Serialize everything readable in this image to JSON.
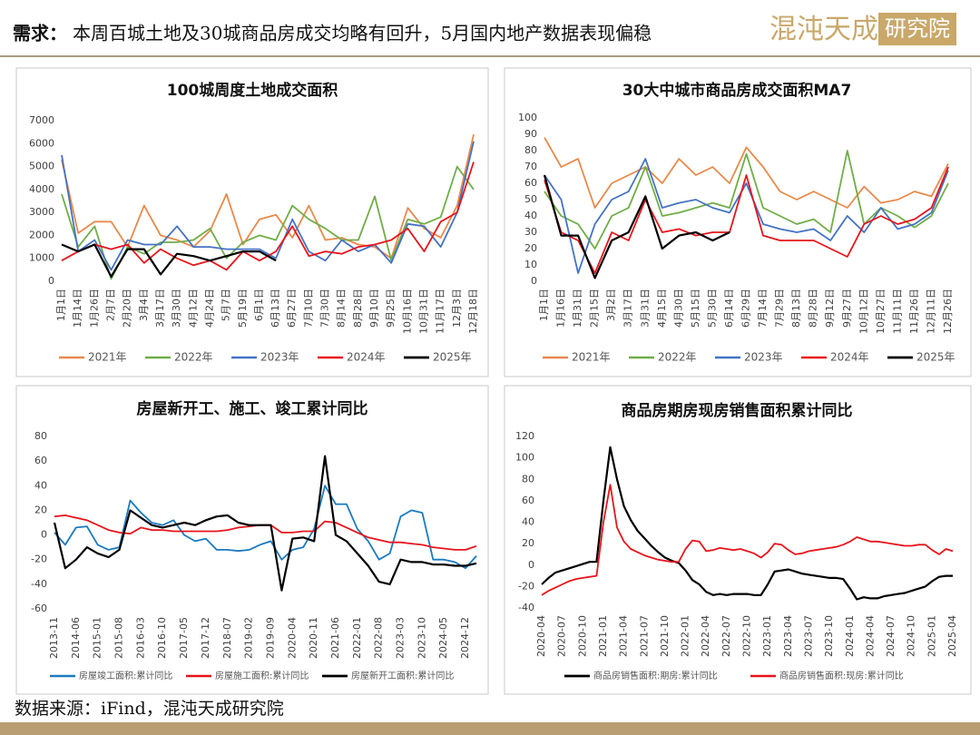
{
  "header": {
    "label": "需求：",
    "title": "本周百城土地及30城商品房成交均略有回升，5月国内地产数据表现偏稳",
    "logo_main": "混沌天成",
    "logo_box": "研究院"
  },
  "source": "数据来源：iFind，混沌天成研究院",
  "chart_data": [
    {
      "type": "line",
      "title": "100城周度土地成交面积",
      "categories": [
        "1月1日",
        "1月14日",
        "1月26日",
        "2月7日",
        "2月20日",
        "3月4日",
        "3月17日",
        "3月30日",
        "4月12日",
        "4月24日",
        "5月7日",
        "5月19日",
        "6月1日",
        "6月13日",
        "6月27日",
        "7月10日",
        "7月30日",
        "8月14日",
        "8月28日",
        "9月10日",
        "9月25日",
        "10月16日",
        "10月31日",
        "11月17日",
        "12月3日",
        "12月18日"
      ],
      "ylim": [
        0,
        7000
      ],
      "yticks": [
        0,
        1000,
        2000,
        3000,
        4000,
        5000,
        6000,
        7000
      ],
      "series": [
        {
          "name": "2021年",
          "color": "#e8894a",
          "values": [
            5300,
            2100,
            2600,
            2600,
            1500,
            3300,
            2000,
            1800,
            1500,
            2200,
            3800,
            1600,
            2700,
            2900,
            1900,
            3300,
            1800,
            1900,
            1600,
            1500,
            1000,
            3200,
            2300,
            1900,
            3300,
            6400
          ]
        },
        {
          "name": "2022年",
          "color": "#70ad47",
          "values": [
            3800,
            1500,
            2400,
            100,
            1500,
            1200,
            1700,
            1700,
            1800,
            2300,
            1000,
            1700,
            2000,
            1800,
            3300,
            2700,
            2300,
            1800,
            1800,
            3700,
            900,
            2700,
            2500,
            2800,
            5000,
            4000
          ]
        },
        {
          "name": "2023年",
          "color": "#4472c4",
          "values": [
            5500,
            1300,
            1800,
            500,
            1800,
            1600,
            1600,
            2400,
            1500,
            1500,
            1400,
            1400,
            1400,
            1000,
            2700,
            1300,
            900,
            1800,
            1300,
            1600,
            800,
            2500,
            2400,
            1500,
            3000,
            6100
          ]
        },
        {
          "name": "2024年",
          "color": "#e8141b",
          "values": [
            900,
            1300,
            1600,
            1400,
            1600,
            800,
            1400,
            1000,
            700,
            900,
            500,
            1300,
            900,
            1300,
            2400,
            1100,
            1300,
            1200,
            1500,
            1600,
            1800,
            2300,
            1300,
            2600,
            3000,
            5200
          ]
        },
        {
          "name": "2025年",
          "color": "#000000",
          "values": [
            1600,
            1300,
            1600,
            200,
            1400,
            1400,
            300,
            1200,
            1100,
            900,
            1100,
            1300,
            1300,
            900,
            null,
            null,
            null,
            null,
            null,
            null,
            null,
            null,
            null,
            null,
            null,
            null
          ]
        }
      ]
    },
    {
      "type": "line",
      "title": "30大中城市商品房成交面积MA7",
      "categories": [
        "1月1日",
        "1月16日",
        "1月31日",
        "2月15日",
        "3月2日",
        "3月17日",
        "3月31日",
        "4月15日",
        "4月30日",
        "5月15日",
        "5月30日",
        "6月14日",
        "6月29日",
        "7月14日",
        "7月29日",
        "8月13日",
        "8月28日",
        "9月12日",
        "9月27日",
        "10月12日",
        "10月27日",
        "11月11日",
        "11月26日",
        "12月11日",
        "12月26日"
      ],
      "ylim": [
        0,
        100
      ],
      "yticks": [
        0,
        10,
        20,
        30,
        40,
        50,
        60,
        70,
        80,
        90,
        100
      ],
      "series": [
        {
          "name": "2021年",
          "color": "#e8894a",
          "values": [
            88,
            70,
            75,
            45,
            60,
            65,
            70,
            60,
            75,
            65,
            70,
            60,
            82,
            70,
            55,
            50,
            55,
            50,
            45,
            58,
            48,
            50,
            55,
            52,
            72
          ]
        },
        {
          "name": "2022年",
          "color": "#70ad47",
          "values": [
            55,
            40,
            35,
            20,
            40,
            45,
            70,
            40,
            42,
            45,
            48,
            45,
            78,
            45,
            40,
            35,
            38,
            30,
            80,
            35,
            45,
            40,
            33,
            40,
            60
          ]
        },
        {
          "name": "2023年",
          "color": "#4472c4",
          "values": [
            65,
            50,
            5,
            35,
            50,
            55,
            75,
            45,
            48,
            50,
            45,
            42,
            60,
            35,
            32,
            30,
            32,
            25,
            40,
            30,
            45,
            32,
            35,
            42,
            68
          ]
        },
        {
          "name": "2024年",
          "color": "#e8141b",
          "values": [
            62,
            30,
            25,
            5,
            30,
            25,
            50,
            30,
            32,
            28,
            30,
            30,
            65,
            28,
            25,
            25,
            25,
            20,
            15,
            35,
            40,
            35,
            38,
            45,
            70
          ]
        },
        {
          "name": "2025年",
          "color": "#000000",
          "values": [
            65,
            28,
            28,
            2,
            25,
            30,
            52,
            20,
            28,
            30,
            25,
            30,
            null,
            null,
            null,
            null,
            null,
            null,
            null,
            null,
            null,
            null,
            null,
            null,
            null
          ]
        }
      ]
    },
    {
      "type": "line",
      "title": "房屋新开工、施工、竣工累计同比",
      "categories": [
        "2013-11",
        null,
        "2014-06",
        null,
        "2015-01",
        null,
        "2015-08",
        null,
        "2016-03",
        null,
        "2016-10",
        null,
        "2017-05",
        null,
        "2017-12",
        null,
        "2018-07",
        null,
        "2019-02",
        null,
        "2019-09",
        null,
        "2020-04",
        null,
        "2020-11",
        null,
        "2021-06",
        null,
        "2022-01",
        null,
        "2022-08",
        null,
        "2023-03",
        null,
        "2023-10",
        null,
        "2024-05",
        null,
        "2024-12",
        null
      ],
      "ylim": [
        -60,
        80
      ],
      "yticks": [
        -60,
        -40,
        -20,
        0,
        20,
        40,
        60,
        80
      ],
      "series": [
        {
          "name": "房屋竣工面积:累计同比",
          "color": "#1a7ac0",
          "values": [
            2,
            -8,
            6,
            7,
            -8,
            -12,
            -10,
            28,
            18,
            10,
            8,
            12,
            0,
            -5,
            -3,
            -12,
            -12,
            -13,
            -12,
            -8,
            -5,
            -20,
            -12,
            -10,
            5,
            40,
            25,
            25,
            5,
            -5,
            -20,
            -15,
            15,
            20,
            18,
            -20,
            -20,
            -22,
            -27,
            -17
          ]
        },
        {
          "name": "房屋施工面积:累计同比",
          "color": "#e8141b",
          "values": [
            15,
            16,
            14,
            12,
            8,
            4,
            2,
            1,
            6,
            4,
            4,
            3,
            3,
            3,
            3,
            3,
            4,
            6,
            7,
            8,
            8,
            2,
            2,
            3,
            3,
            11,
            10,
            6,
            2,
            -2,
            -4,
            -6,
            -6,
            -7,
            -8,
            -10,
            -11,
            -12,
            -12,
            -9
          ]
        },
        {
          "name": "房屋新开工面积:累计同比",
          "color": "#000000",
          "values": [
            10,
            -27,
            -20,
            -10,
            -15,
            -18,
            -12,
            20,
            14,
            8,
            6,
            8,
            10,
            8,
            12,
            15,
            16,
            10,
            8,
            8,
            8,
            -45,
            -3,
            -2,
            -5,
            64,
            0,
            -5,
            -15,
            -25,
            -38,
            -40,
            -20,
            -22,
            -22,
            -24,
            -24,
            -25,
            -25,
            -23
          ]
        }
      ]
    },
    {
      "type": "line",
      "title": "商品房期房现房销售面积累计同比",
      "categories": [
        "2020-04",
        null,
        null,
        "2020-07",
        null,
        null,
        "2020-10",
        null,
        null,
        "2021-01",
        null,
        null,
        "2021-04",
        null,
        null,
        "2021-07",
        null,
        null,
        "2021-10",
        null,
        null,
        "2022-01",
        null,
        null,
        "2022-04",
        null,
        null,
        "2022-07",
        null,
        null,
        "2022-10",
        null,
        null,
        "2023-01",
        null,
        null,
        "2023-04",
        null,
        null,
        "2023-07",
        null,
        null,
        "2023-10",
        null,
        null,
        "2024-01",
        null,
        null,
        "2024-04",
        null,
        null,
        "2024-07",
        null,
        null,
        "2024-10",
        null,
        null,
        "2025-01",
        null,
        null,
        "2025-04"
      ],
      "ylim": [
        -40,
        120
      ],
      "yticks": [
        -40,
        -20,
        0,
        20,
        40,
        60,
        80,
        100,
        120
      ],
      "series": [
        {
          "name": "商品房销售面积:期房:累计同比",
          "color": "#000000",
          "values": [
            -18,
            -12,
            -7,
            -5,
            -3,
            -1,
            1,
            3,
            3,
            60,
            110,
            80,
            55,
            42,
            32,
            25,
            18,
            12,
            7,
            4,
            2,
            -5,
            -14,
            -18,
            -25,
            -28,
            -27,
            -28,
            -27,
            -27,
            -27,
            -28,
            -28,
            -18,
            -6,
            -5,
            -4,
            -6,
            -8,
            -9,
            -10,
            -11,
            -12,
            -12,
            -13,
            -22,
            -32,
            -30,
            -31,
            -31,
            -29,
            -28,
            -27,
            -26,
            -24,
            -22,
            -20,
            -15,
            -11,
            -10,
            -10
          ]
        },
        {
          "name": "商品房销售面积:现房:累计同比",
          "color": "#e8141b",
          "values": [
            -28,
            -24,
            -21,
            -18,
            -15,
            -13,
            -12,
            -11,
            -10,
            40,
            75,
            35,
            22,
            15,
            12,
            9,
            7,
            5,
            4,
            3,
            3,
            15,
            23,
            22,
            13,
            14,
            16,
            15,
            14,
            15,
            13,
            11,
            7,
            12,
            20,
            19,
            14,
            10,
            11,
            13,
            14,
            15,
            16,
            17,
            19,
            22,
            26,
            24,
            22,
            22,
            21,
            20,
            19,
            18,
            18,
            19,
            19,
            14,
            10,
            15,
            13
          ]
        }
      ]
    }
  ]
}
